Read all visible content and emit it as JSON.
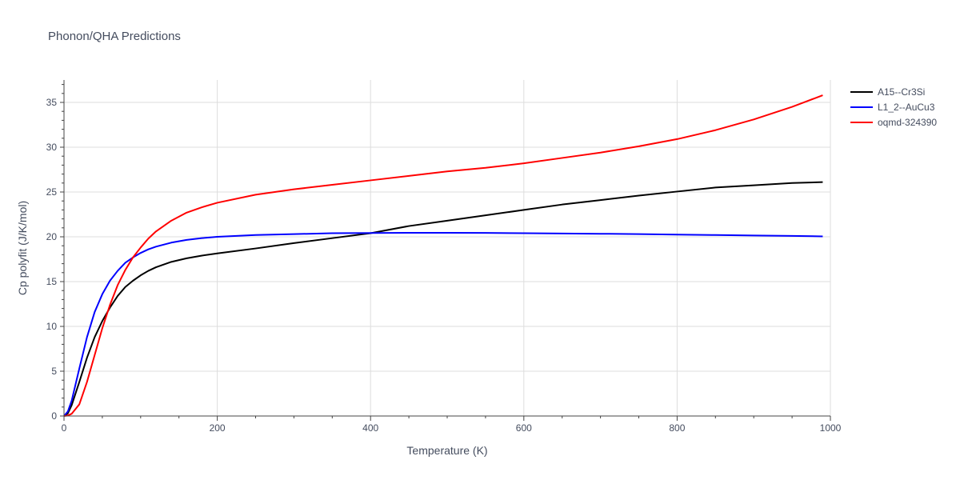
{
  "chart_data": {
    "type": "line",
    "title": "Phonon/QHA Predictions",
    "xlabel": "Temperature (K)",
    "ylabel": "Cp polyfit (J/K/mol)",
    "xlim": [
      0,
      1000
    ],
    "ylim": [
      0,
      37.5
    ],
    "xticks": [
      0,
      200,
      400,
      600,
      800,
      1000
    ],
    "yticks": [
      0,
      5,
      10,
      15,
      20,
      25,
      30,
      35
    ],
    "grid": true,
    "legend_position": "top-right",
    "series": [
      {
        "name": "A15--Cr3Si",
        "color": "#000000",
        "x": [
          0,
          5,
          10,
          20,
          30,
          40,
          50,
          60,
          70,
          80,
          90,
          100,
          110,
          120,
          140,
          160,
          180,
          200,
          250,
          300,
          350,
          400,
          450,
          500,
          550,
          600,
          650,
          700,
          750,
          800,
          850,
          900,
          950,
          990
        ],
        "y": [
          0,
          0.3,
          1.2,
          3.8,
          6.5,
          8.8,
          10.6,
          12.1,
          13.4,
          14.4,
          15.1,
          15.7,
          16.2,
          16.6,
          17.2,
          17.6,
          17.9,
          18.15,
          18.7,
          19.3,
          19.85,
          20.4,
          21.2,
          21.8,
          22.4,
          23.0,
          23.6,
          24.1,
          24.6,
          25.05,
          25.5,
          25.75,
          26.0,
          26.1
        ]
      },
      {
        "name": "L1_2--AuCu3",
        "color": "#0000ff",
        "x": [
          0,
          5,
          10,
          20,
          30,
          40,
          50,
          60,
          70,
          80,
          90,
          100,
          110,
          120,
          140,
          160,
          180,
          200,
          250,
          300,
          350,
          400,
          450,
          500,
          550,
          600,
          650,
          700,
          750,
          800,
          850,
          900,
          950,
          990
        ],
        "y": [
          0,
          0.5,
          1.7,
          5.3,
          8.8,
          11.6,
          13.6,
          15.1,
          16.2,
          17.1,
          17.7,
          18.2,
          18.6,
          18.9,
          19.35,
          19.65,
          19.85,
          20.0,
          20.2,
          20.3,
          20.4,
          20.42,
          20.45,
          20.45,
          20.43,
          20.4,
          20.37,
          20.34,
          20.3,
          20.25,
          20.2,
          20.15,
          20.1,
          20.05
        ]
      },
      {
        "name": "oqmd-324390",
        "color": "#ff0000",
        "x": [
          0,
          5,
          10,
          20,
          30,
          40,
          50,
          60,
          70,
          80,
          90,
          100,
          110,
          120,
          140,
          160,
          180,
          200,
          250,
          300,
          350,
          400,
          450,
          500,
          550,
          600,
          650,
          700,
          750,
          800,
          850,
          900,
          950,
          990
        ],
        "y": [
          0,
          0.05,
          0.25,
          1.3,
          3.8,
          6.8,
          9.8,
          12.4,
          14.6,
          16.3,
          17.7,
          18.8,
          19.8,
          20.6,
          21.8,
          22.7,
          23.3,
          23.8,
          24.7,
          25.3,
          25.8,
          26.3,
          26.8,
          27.3,
          27.7,
          28.2,
          28.8,
          29.4,
          30.1,
          30.9,
          31.9,
          33.1,
          34.5,
          35.8
        ]
      }
    ]
  }
}
